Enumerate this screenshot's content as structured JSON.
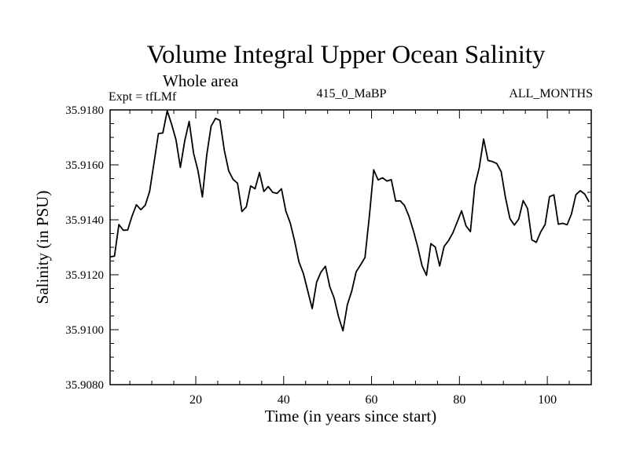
{
  "chart_data": {
    "type": "line",
    "title": "Volume Integral Upper Ocean Salinity",
    "subtitle": "Whole area",
    "expt_label": "Expt = tfLMf",
    "run_label": "415_0_MaBP",
    "period_label": "ALL_MONTHS",
    "xlabel": "Time (in years since start)",
    "ylabel": "Salinity (in PSU)",
    "xlim": [
      0.5,
      110
    ],
    "ylim": [
      35.908,
      35.918
    ],
    "x_ticks": [
      20,
      40,
      60,
      80,
      100
    ],
    "y_ticks": [
      35.908,
      35.91,
      35.912,
      35.914,
      35.916,
      35.918
    ],
    "y_tick_labels": [
      "35.9080",
      "35.9100",
      "35.9120",
      "35.9140",
      "35.9160",
      "35.9180"
    ],
    "x_minor_step": 5,
    "y_minor_step": 0.0005,
    "color": "#000000",
    "series": [
      {
        "name": "tfLMf",
        "x": [
          0.5,
          1.5,
          2.5,
          3.5,
          4.5,
          5.5,
          6.5,
          7.5,
          8.5,
          9.5,
          10.5,
          11.5,
          12.5,
          13.5,
          14.5,
          15.5,
          16.5,
          17.5,
          18.5,
          19.5,
          20.5,
          21.5,
          22.5,
          23.5,
          24.5,
          25.5,
          26.5,
          27.5,
          28.5,
          29.5,
          30.5,
          31.5,
          32.5,
          33.5,
          34.5,
          35.5,
          36.5,
          37.5,
          38.5,
          39.5,
          40.5,
          41.5,
          42.5,
          43.5,
          44.5,
          45.5,
          46.5,
          47.5,
          48.5,
          49.5,
          50.5,
          51.5,
          52.5,
          53.5,
          54.5,
          55.5,
          56.5,
          57.5,
          58.5,
          59.5,
          60.5,
          61.5,
          62.5,
          63.5,
          64.5,
          65.5,
          66.5,
          67.5,
          68.5,
          69.5,
          70.5,
          71.5,
          72.5,
          73.5,
          74.5,
          75.5,
          76.5,
          77.5,
          78.5,
          79.5,
          80.5,
          81.5,
          82.5,
          83.5,
          84.5,
          85.5,
          86.5,
          87.5,
          88.5,
          89.5,
          90.5,
          91.5,
          92.5,
          93.5,
          94.5,
          95.5,
          96.5,
          97.5,
          98.5,
          99.5,
          100.5,
          101.5,
          102.5,
          103.5,
          104.5,
          105.5,
          106.5,
          107.5,
          108.5,
          109.5
        ],
        "values": [
          35.91265,
          35.91268,
          35.91383,
          35.91362,
          35.91363,
          35.91413,
          35.91455,
          35.91437,
          35.91453,
          35.91503,
          35.91608,
          35.91714,
          35.91716,
          35.91797,
          35.91748,
          35.91692,
          35.91591,
          35.91688,
          35.91758,
          35.91642,
          35.91579,
          35.91483,
          35.91637,
          35.91741,
          35.91769,
          35.91762,
          35.91653,
          35.91578,
          35.91547,
          35.91533,
          35.9143,
          35.91447,
          35.91523,
          35.91513,
          35.91572,
          35.91503,
          35.91521,
          35.915,
          35.91496,
          35.91513,
          35.91431,
          35.91388,
          35.91323,
          35.91246,
          35.91204,
          35.9114,
          35.91077,
          35.91173,
          35.9121,
          35.91231,
          35.91156,
          35.91115,
          35.91047,
          35.90996,
          35.91091,
          35.91141,
          35.91211,
          35.91236,
          35.91263,
          35.91414,
          35.91582,
          35.91545,
          35.91553,
          35.91541,
          35.91546,
          35.91468,
          35.91469,
          35.91452,
          35.91413,
          35.91362,
          35.91302,
          35.91233,
          35.91198,
          35.91313,
          35.91301,
          35.91232,
          35.91303,
          35.91324,
          35.91352,
          35.91392,
          35.91433,
          35.91378,
          35.91357,
          35.91524,
          35.91589,
          35.91694,
          35.91616,
          35.91612,
          35.91605,
          35.91575,
          35.91479,
          35.91404,
          35.91381,
          35.91403,
          35.9147,
          35.91441,
          35.91327,
          35.91318,
          35.91356,
          35.91383,
          35.91484,
          35.91491,
          35.91384,
          35.91387,
          35.91382,
          35.91421,
          35.91491,
          35.91506,
          35.91494,
          35.91465
        ]
      }
    ]
  }
}
